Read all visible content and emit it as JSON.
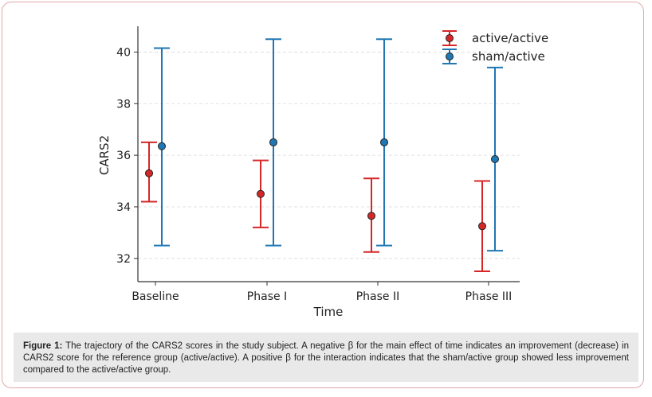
{
  "chart_data": {
    "type": "scatter",
    "xlabel": "Time",
    "ylabel": "CARS2",
    "categories": [
      "Baseline",
      "Phase I",
      "Phase II",
      "Phase III"
    ],
    "ylim": [
      31.1,
      41.0
    ],
    "yticks": [
      32,
      34,
      36,
      38,
      40
    ],
    "grid": true,
    "legend_position": "top-right",
    "series": [
      {
        "name": "active/active",
        "color": "#d62728",
        "values": [
          35.3,
          34.5,
          33.65,
          33.25
        ],
        "lower": [
          34.2,
          33.2,
          32.25,
          31.5
        ],
        "upper": [
          36.5,
          35.8,
          35.1,
          35.0
        ]
      },
      {
        "name": "sham/active",
        "color": "#1f77b4",
        "values": [
          36.35,
          36.5,
          36.5,
          35.85
        ],
        "lower": [
          32.5,
          32.5,
          32.5,
          32.3
        ],
        "upper": [
          40.15,
          40.5,
          40.5,
          39.4
        ]
      }
    ]
  },
  "caption": {
    "label": "Figure 1:",
    "text": "The trajectory of the CARS2 scores in the study subject. A negative β for the main effect of time indicates an improvement (decrease) in CARS2 score for the reference group (active/active). A positive β for the interaction indicates that the sham/active group showed less improvement compared to the active/active group."
  }
}
